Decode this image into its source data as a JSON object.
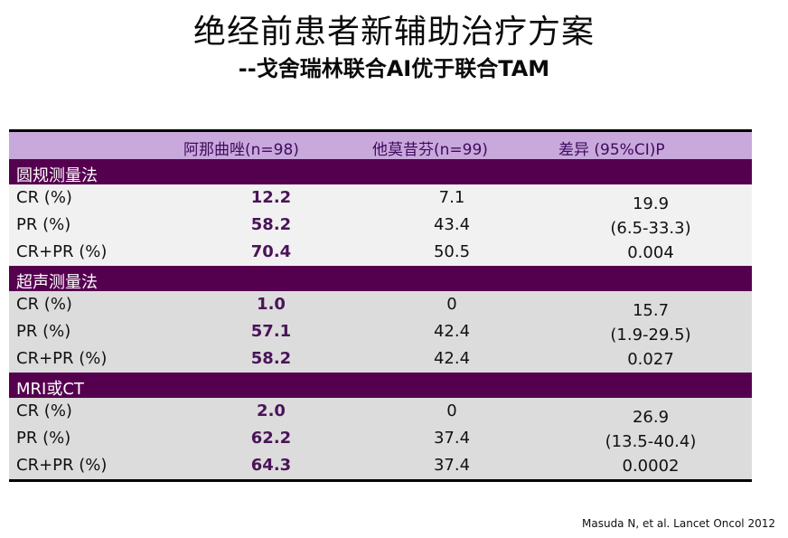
{
  "title": "绝经前患者新辅助治疗方案",
  "subtitle": "--戈舍瑞林联合AI优于联合TAM",
  "table": {
    "headers": [
      "阿那曲唑(n=98)",
      "他莫昔芬(n=99)",
      "差异 (95%CI)P"
    ],
    "sections": [
      {
        "name": "圆规测量法",
        "rows": [
          {
            "label": "CR (%)",
            "a": "12.2",
            "t": "7.1"
          },
          {
            "label": "PR (%)",
            "a": "58.2",
            "t": "43.4"
          },
          {
            "label": "CR+PR (%)",
            "a": "70.4",
            "t": "50.5"
          }
        ],
        "diff": [
          "19.9",
          "(6.5-33.3)",
          "0.004"
        ]
      },
      {
        "name": "超声测量法",
        "rows": [
          {
            "label": "CR (%)",
            "a": "1.0",
            "t": "0"
          },
          {
            "label": "PR (%)",
            "a": "57.1",
            "t": "42.4"
          },
          {
            "label": "CR+PR (%)",
            "a": "58.2",
            "t": "42.4"
          }
        ],
        "diff": [
          "15.7",
          "(1.9-29.5)",
          "0.027"
        ]
      },
      {
        "name": "MRI或CT",
        "rows": [
          {
            "label": "CR (%)",
            "a": "2.0",
            "t": "0"
          },
          {
            "label": "PR (%)",
            "a": "62.2",
            "t": "37.4"
          },
          {
            "label": "CR+PR (%)",
            "a": "64.3",
            "t": "37.4"
          }
        ],
        "diff": [
          "26.9",
          "(13.5-40.4)",
          "0.0002"
        ]
      }
    ]
  },
  "citation": "Masuda N, et al. Lancet Oncol 2012",
  "colors": {
    "header_bg": "#c9a8dc",
    "section_bg": "#55004f",
    "value_highlight": "#4a1458"
  }
}
